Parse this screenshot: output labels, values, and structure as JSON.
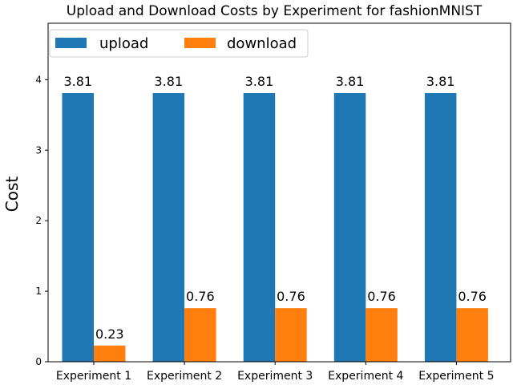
{
  "chart_data": {
    "type": "bar",
    "title": "Upload and Download Costs by Experiment for fashionMNIST",
    "xlabel": "",
    "ylabel": "Cost",
    "categories": [
      "Experiment 1",
      "Experiment 2",
      "Experiment 3",
      "Experiment 4",
      "Experiment 5"
    ],
    "series": [
      {
        "name": "upload",
        "values": [
          3.81,
          3.81,
          3.81,
          3.81,
          3.81
        ],
        "labels": [
          "3.81",
          "3.81",
          "3.81",
          "3.81",
          "3.81"
        ],
        "color": "#1f77b4"
      },
      {
        "name": "download",
        "values": [
          0.23,
          0.76,
          0.76,
          0.76,
          0.76
        ],
        "labels": [
          "0.23",
          "0.76",
          "0.76",
          "0.76",
          "0.76"
        ],
        "color": "#ff7f0e"
      }
    ],
    "ylim": [
      0,
      4.8
    ],
    "yticks": [
      0,
      1,
      2,
      3,
      4
    ],
    "ytick_labels": [
      "0",
      "1",
      "2",
      "3",
      "4"
    ],
    "grid": false,
    "legend": "top-left"
  }
}
